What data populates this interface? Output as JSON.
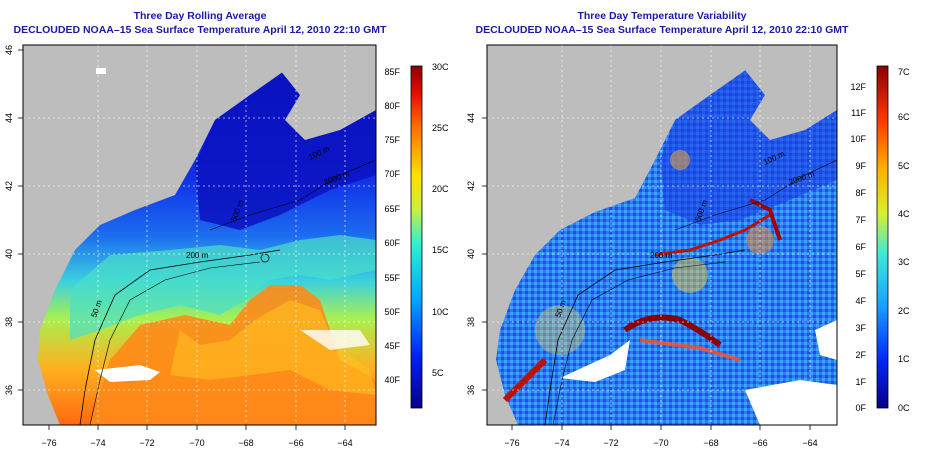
{
  "left_panel": {
    "title": "Three Day Rolling Average",
    "subtitle": "DECLOUDED NOAA–15 Sea Surface Temperature April 12, 2010 22:10 GMT",
    "x_ticks": [
      "−76",
      "−74",
      "−72",
      "−70",
      "−68",
      "−66",
      "−64"
    ],
    "y_ticks": [
      "36",
      "38",
      "40",
      "42",
      "44",
      "46"
    ],
    "contours": [
      "50 m",
      "200 m",
      "500 m",
      "100 m",
      "2000 m"
    ],
    "colorbar_f": [
      "40F",
      "45F",
      "50F",
      "55F",
      "60F",
      "65F",
      "70F",
      "75F",
      "80F",
      "85F"
    ],
    "colorbar_c": [
      "5C",
      "10C",
      "15C",
      "20C",
      "25C",
      "30C"
    ]
  },
  "right_panel": {
    "title": "Three Day Temperature Variability",
    "subtitle": "DECLOUDED NOAA–15 Sea Surface Temperature April 12, 2010 22:10 GMT",
    "x_ticks": [
      "−76",
      "−74",
      "−72",
      "−70",
      "−68",
      "−66",
      "−64"
    ],
    "y_ticks": [
      "36",
      "38",
      "40",
      "42",
      "44"
    ],
    "contours": [
      "50 m",
      "200 m",
      "500 m",
      "100 m",
      "2000 m"
    ],
    "colorbar_f": [
      "0F",
      "1F",
      "2F",
      "3F",
      "4F",
      "5F",
      "6F",
      "7F",
      "8F",
      "9F",
      "10F",
      "11F",
      "12F"
    ],
    "colorbar_c": [
      "0C",
      "1C",
      "2C",
      "3C",
      "4C",
      "5C",
      "6C",
      "7C"
    ]
  },
  "colors": {
    "land": "#bdbdbd",
    "title": "#1a1aa6",
    "cold": "#0a16d6",
    "warm": "#ff7a10"
  }
}
